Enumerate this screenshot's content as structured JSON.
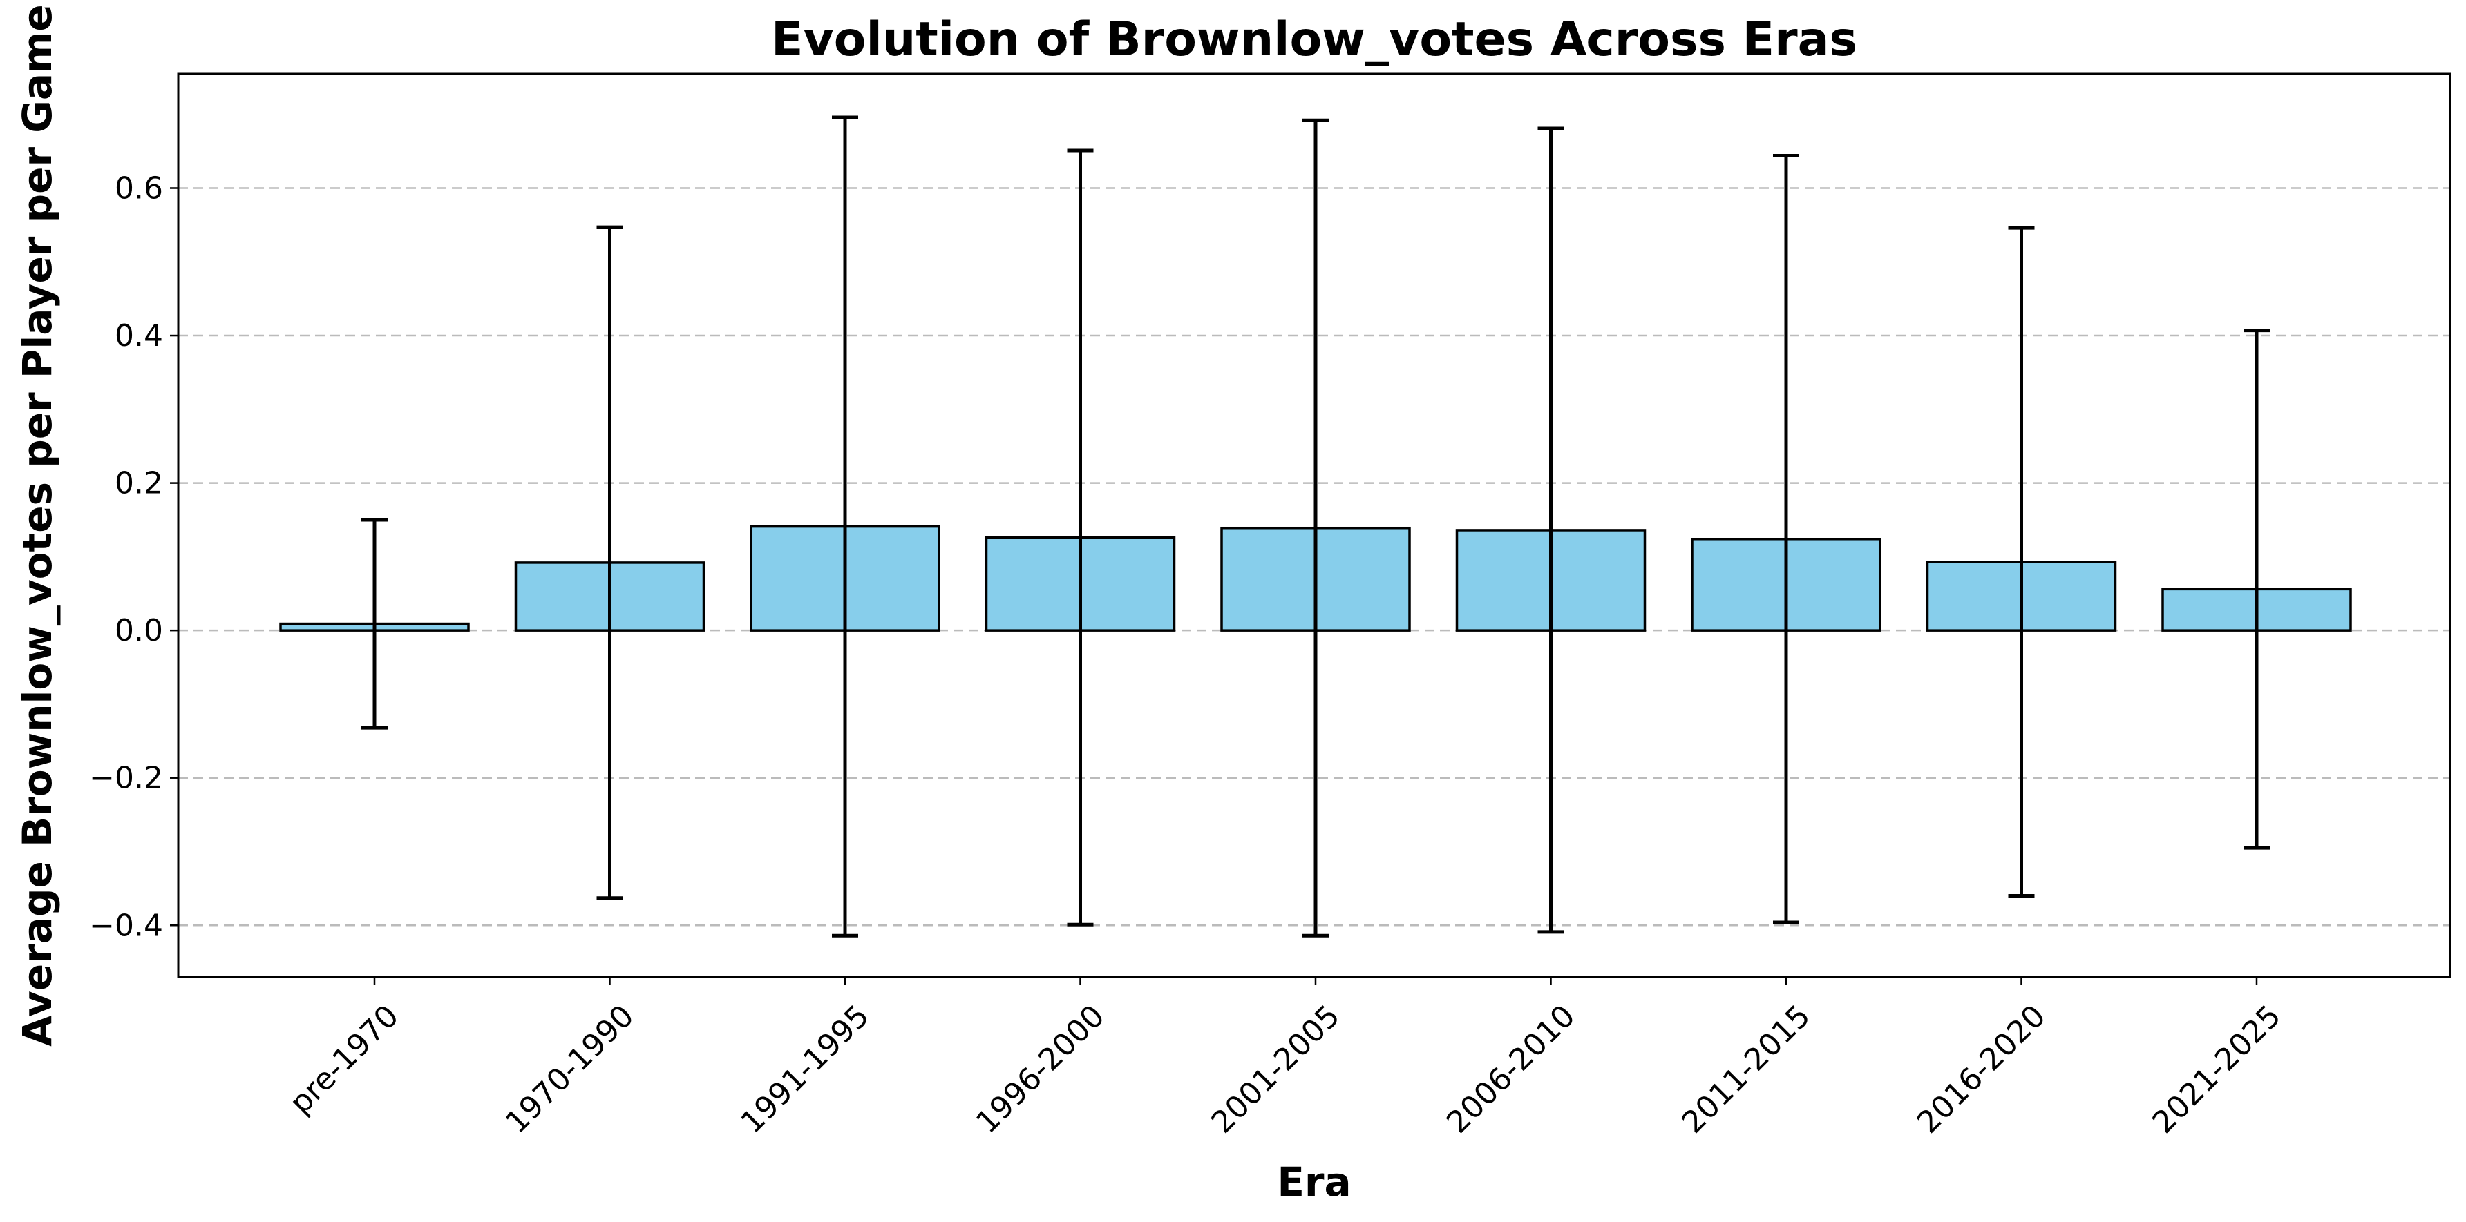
{
  "chart_data": {
    "type": "bar",
    "title": "Evolution of Brownlow_votes Across Eras",
    "xlabel": "Era",
    "ylabel": "Average Brownlow_votes per Player per Game",
    "categories": [
      "pre-1970",
      "1970-1990",
      "1991-1995",
      "1996-2000",
      "2001-2005",
      "2006-2010",
      "2011-2015",
      "2016-2020",
      "2021-2025"
    ],
    "values": [
      0.009,
      0.092,
      0.141,
      0.126,
      0.139,
      0.136,
      0.124,
      0.093,
      0.056
    ],
    "error": [
      0.141,
      0.455,
      0.555,
      0.525,
      0.553,
      0.545,
      0.52,
      0.453,
      0.351
    ],
    "ylim": [
      -0.47,
      0.755
    ],
    "yticks": [
      -0.4,
      -0.2,
      0.0,
      0.2,
      0.4,
      0.6
    ],
    "ytick_labels": [
      "−0.4",
      "−0.2",
      "0.0",
      "0.2",
      "0.4",
      "0.6"
    ],
    "grid": "y-dashed",
    "bar_color": "#87CEEB",
    "edge_color": "#000000",
    "grid_color": "#bbbbbb"
  }
}
